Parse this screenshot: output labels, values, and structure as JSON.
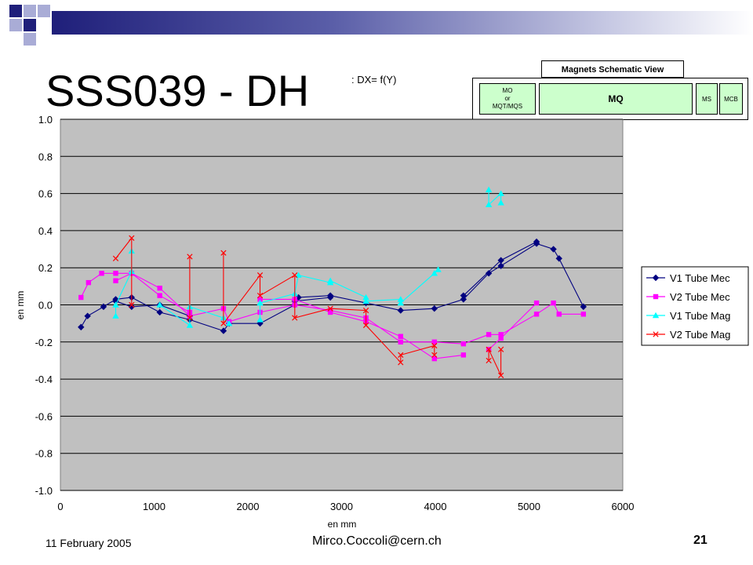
{
  "slide": {
    "title": "SSS039 - DH",
    "subtitle": ": DX= f(Y)",
    "date": "11 February 2005",
    "email": "Mirco.Coccoli@cern.ch",
    "page": "21",
    "accent_dark": "#1f1f7a",
    "accent_light": "#a9acd6"
  },
  "schematic": {
    "title": "Magnets Schematic View",
    "mo_lines": [
      "MO",
      "or",
      "MQT/MQS"
    ],
    "mq": "MQ",
    "ms": "MS",
    "mcb": "MCB"
  },
  "chart_data": {
    "type": "line",
    "xlabel": "en mm",
    "ylabel": "en mm",
    "xlim": [
      0,
      6000
    ],
    "ylim": [
      -1.0,
      1.0
    ],
    "x_ticks": [
      "0",
      "1000",
      "2000",
      "3000",
      "4000",
      "5000",
      "6000"
    ],
    "y_ticks": [
      "1.0",
      "0.8",
      "0.6",
      "0.4",
      "0.2",
      "0.0",
      "-0.2",
      "-0.4",
      "-0.6",
      "-0.8",
      "-1.0"
    ],
    "plot_background": "#c0c0c0",
    "grid": true,
    "legend_position": "right",
    "series": [
      {
        "name": "V1 Tube Mec",
        "color": "#000080",
        "marker": "diamond",
        "segments": [
          [
            [
              220,
              -0.12
            ],
            [
              290,
              -0.06
            ],
            [
              460,
              -0.01
            ],
            [
              590,
              0.03
            ],
            [
              760,
              0.04
            ],
            [
              1060,
              -0.04
            ],
            [
              1380,
              -0.08
            ],
            [
              1740,
              -0.14
            ],
            [
              1800,
              -0.1
            ],
            [
              2130,
              -0.1
            ],
            [
              2500,
              0.0
            ],
            [
              2540,
              0.04
            ],
            [
              2880,
              0.05
            ],
            [
              3260,
              0.01
            ],
            [
              3630,
              -0.03
            ],
            [
              3990,
              -0.02
            ],
            [
              4300,
              0.03
            ],
            [
              4570,
              0.17
            ],
            [
              4700,
              0.21
            ],
            [
              5080,
              0.33
            ],
            [
              5260,
              0.3
            ],
            [
              5320,
              0.25
            ],
            [
              5580,
              -0.01
            ]
          ],
          [
            [
              590,
              0.02
            ],
            [
              760,
              -0.01
            ],
            [
              1060,
              0.0
            ],
            [
              1380,
              -0.06
            ]
          ],
          [
            [
              2500,
              0.02
            ],
            [
              2880,
              0.04
            ]
          ],
          [
            [
              4300,
              0.05
            ],
            [
              4700,
              0.24
            ],
            [
              5080,
              0.34
            ]
          ]
        ]
      },
      {
        "name": "V2 Tube Mec",
        "color": "#ff00ff",
        "marker": "square",
        "segments": [
          [
            [
              220,
              0.04
            ],
            [
              300,
              0.12
            ],
            [
              440,
              0.17
            ],
            [
              590,
              0.17
            ],
            [
              760,
              0.17
            ],
            [
              1060,
              0.09
            ],
            [
              1380,
              -0.06
            ],
            [
              1740,
              -0.02
            ],
            [
              1800,
              -0.09
            ],
            [
              2130,
              -0.04
            ],
            [
              2500,
              0.0
            ],
            [
              2880,
              -0.03
            ],
            [
              3260,
              -0.07
            ],
            [
              3630,
              -0.2
            ],
            [
              3990,
              -0.2
            ],
            [
              4300,
              -0.21
            ],
            [
              4570,
              -0.16
            ],
            [
              4700,
              -0.16
            ],
            [
              5080,
              -0.05
            ],
            [
              5260,
              0.01
            ],
            [
              5320,
              -0.05
            ],
            [
              5580,
              -0.05
            ]
          ],
          [
            [
              590,
              0.13
            ],
            [
              760,
              0.17
            ],
            [
              1060,
              0.05
            ],
            [
              1380,
              -0.04
            ]
          ],
          [
            [
              2130,
              0.03
            ],
            [
              2500,
              0.03
            ],
            [
              2880,
              -0.04
            ],
            [
              3260,
              -0.09
            ],
            [
              3630,
              -0.17
            ],
            [
              3990,
              -0.29
            ],
            [
              4300,
              -0.27
            ]
          ],
          [
            [
              4570,
              -0.24
            ],
            [
              4700,
              -0.18
            ],
            [
              5080,
              0.01
            ]
          ]
        ]
      },
      {
        "name": "V1 Tube Mag",
        "color": "#00ffff",
        "marker": "triangle",
        "segments": [
          [
            [
              590,
              -0.06
            ],
            [
              590,
              0.0
            ],
            [
              760,
              0.18
            ],
            [
              760,
              0.29
            ]
          ],
          [
            [
              1060,
              0.0
            ],
            [
              1380,
              -0.11
            ],
            [
              1380,
              -0.01
            ],
            [
              1740,
              -0.07
            ],
            [
              1800,
              -0.1
            ]
          ],
          [
            [
              2130,
              -0.08
            ],
            [
              2130,
              0.01
            ],
            [
              2500,
              0.06
            ],
            [
              2540,
              0.16
            ],
            [
              2880,
              0.12
            ],
            [
              2880,
              0.13
            ],
            [
              3260,
              0.04
            ],
            [
              3260,
              0.02
            ],
            [
              3630,
              0.03
            ],
            [
              3630,
              0.01
            ],
            [
              3990,
              0.17
            ],
            [
              4030,
              0.19
            ]
          ],
          [
            [
              4570,
              0.62
            ],
            [
              4570,
              0.54
            ],
            [
              4700,
              0.6
            ],
            [
              4700,
              0.55
            ]
          ]
        ]
      },
      {
        "name": "V2 Tube Mag",
        "color": "#ff0000",
        "marker": "x",
        "segments": [
          [
            [
              590,
              0.25
            ],
            [
              760,
              0.36
            ],
            [
              760,
              0.0
            ]
          ],
          [
            [
              1380,
              0.26
            ],
            [
              1380,
              -0.07
            ]
          ],
          [
            [
              1740,
              0.28
            ],
            [
              1740,
              -0.1
            ],
            [
              2130,
              0.16
            ],
            [
              2130,
              0.05
            ],
            [
              2500,
              0.16
            ],
            [
              2500,
              -0.07
            ],
            [
              2880,
              -0.02
            ],
            [
              3260,
              -0.03
            ],
            [
              3260,
              -0.11
            ],
            [
              3630,
              -0.31
            ],
            [
              3630,
              -0.27
            ],
            [
              3990,
              -0.22
            ],
            [
              3990,
              -0.27
            ]
          ],
          [
            [
              4570,
              -0.3
            ],
            [
              4570,
              -0.24
            ],
            [
              4700,
              -0.38
            ],
            [
              4700,
              -0.24
            ]
          ]
        ]
      }
    ]
  }
}
